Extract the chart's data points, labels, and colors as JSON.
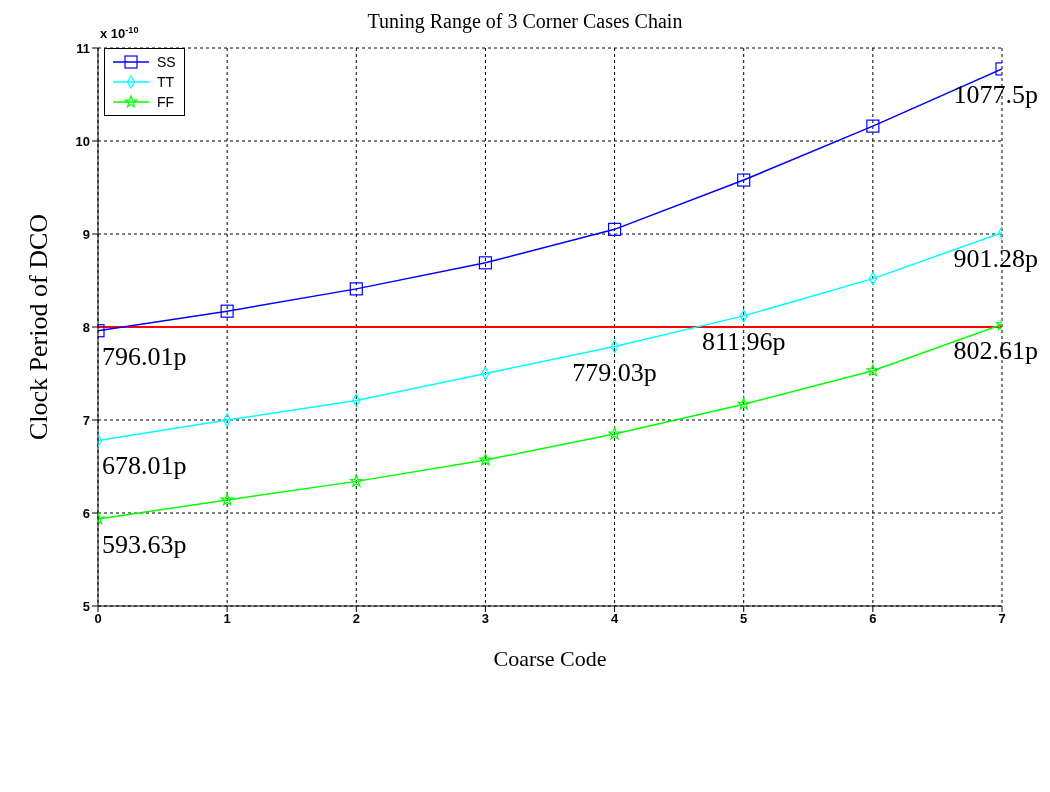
{
  "chart_data": {
    "type": "line",
    "title": "Tuning Range of 3 Corner Cases Chain",
    "xlabel": "Coarse Code",
    "ylabel": "Clock Period of DCO",
    "x": [
      0,
      1,
      2,
      3,
      4,
      5,
      6,
      7
    ],
    "xlim": [
      0,
      7
    ],
    "xticks": [
      0,
      1,
      2,
      3,
      4,
      5,
      6,
      7
    ],
    "ylim": [
      5,
      11
    ],
    "yticks": [
      5,
      6,
      7,
      8,
      9,
      10,
      11
    ],
    "grid": true,
    "legend": "top left",
    "line_style": "solid",
    "series": [
      {
        "name": "SS",
        "color": "#0000ff",
        "marker": "square",
        "values": [
          7.9601,
          8.17,
          8.41,
          8.69,
          9.05,
          9.58,
          10.16,
          10.775
        ]
      },
      {
        "name": "TT",
        "color": "#00ffff",
        "marker": "diamond",
        "values": [
          6.7801,
          7.0,
          7.21,
          7.5,
          7.7903,
          8.1196,
          8.52,
          9.0128
        ]
      },
      {
        "name": "FF",
        "color": "#00ff00",
        "marker": "star",
        "values": [
          5.9363,
          6.14,
          6.34,
          6.57,
          6.85,
          7.17,
          7.53,
          8.0261
        ]
      }
    ],
    "ref_lines": [
      {
        "axis": "y",
        "value": 8,
        "color": "#ff0000"
      }
    ],
    "annotations": [
      "x 10$^{-10}$",
      {
        "text": "796.01p",
        "x": 0,
        "y": 7.9601
      },
      {
        "text": "678.01p",
        "x": 0,
        "y": 6.7801
      },
      {
        "text": "593.63p",
        "x": 0,
        "y": 5.9363
      },
      {
        "text": "779.03p",
        "x": 4,
        "y": 7.7903
      },
      {
        "text": "811.96p",
        "x": 5,
        "y": 8.1196
      },
      {
        "text": "1077.5p",
        "x": 7,
        "y": 10.775
      },
      {
        "text": "901.28p",
        "x": 7,
        "y": 9.0128
      },
      {
        "text": "802.61p",
        "x": 7,
        "y": 8.0261
      }
    ]
  }
}
